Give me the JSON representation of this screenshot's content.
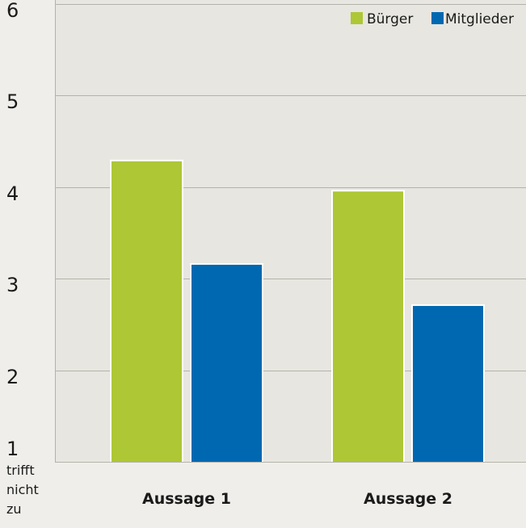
{
  "chart_data": {
    "type": "bar",
    "categories": [
      "Aussage 1",
      "Aussage 2"
    ],
    "series": [
      {
        "name": "Bürger",
        "values": [
          4.3,
          3.97
        ],
        "color": "#adc735"
      },
      {
        "name": "Mitglieder",
        "values": [
          3.17,
          2.72
        ],
        "color": "#0068b0"
      }
    ],
    "ylim": [
      1,
      6
    ],
    "yticks": [
      "1",
      "2",
      "3",
      "4",
      "5",
      "6"
    ],
    "y_min_label": [
      "trifft",
      "nicht",
      "zu"
    ],
    "grid": true,
    "legend_position": "top-right",
    "plot_background": "#e7e6e0",
    "gridline_color": "#b4b3aa"
  }
}
